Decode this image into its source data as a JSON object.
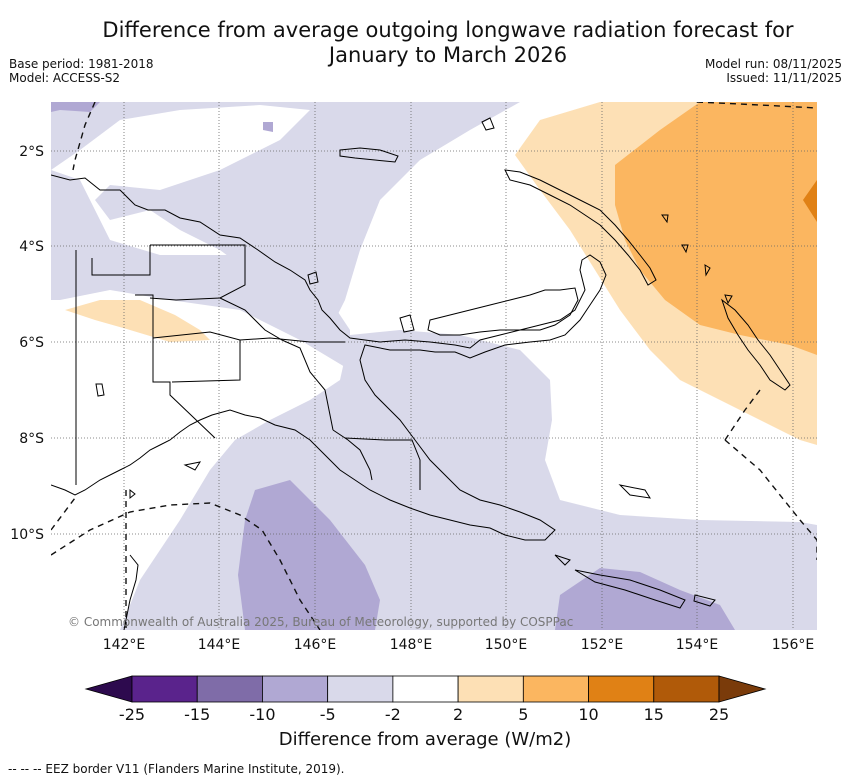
{
  "title_line1": "Difference from average outgoing longwave radiation forecast for",
  "title_line2": "January to March 2026",
  "base_period": "Base period: 1981-2018",
  "model": "Model: ACCESS-S2",
  "model_run": "Model run: 08/11/2025",
  "issued": "Issued: 11/11/2025",
  "lat_labels": [
    "2°S",
    "4°S",
    "6°S",
    "8°S",
    "10°S"
  ],
  "lon_labels": [
    "142°E",
    "144°E",
    "146°E",
    "148°E",
    "150°E",
    "152°E",
    "154°E",
    "156°E"
  ],
  "copyright": "© Commonwealth of Australia 2025, Bureau of Meteorology, supported by COSPPac",
  "colorbar": {
    "title": "Difference from average (W/m2)",
    "ticks": [
      "-25",
      "-15",
      "-10",
      "-5",
      "-2",
      "2",
      "5",
      "10",
      "15",
      "25"
    ],
    "colors": [
      "#2d0a4e",
      "#5a238c",
      "#7f6ca8",
      "#b0a8d3",
      "#d9d9ea",
      "#ffffff",
      "#fde0b5",
      "#fbb660",
      "#e08115",
      "#b05a09",
      "#7a3b0a"
    ]
  },
  "footnote": "--  --  -- EEZ border V11 (Flanders Marine Institute, 2019)."
}
